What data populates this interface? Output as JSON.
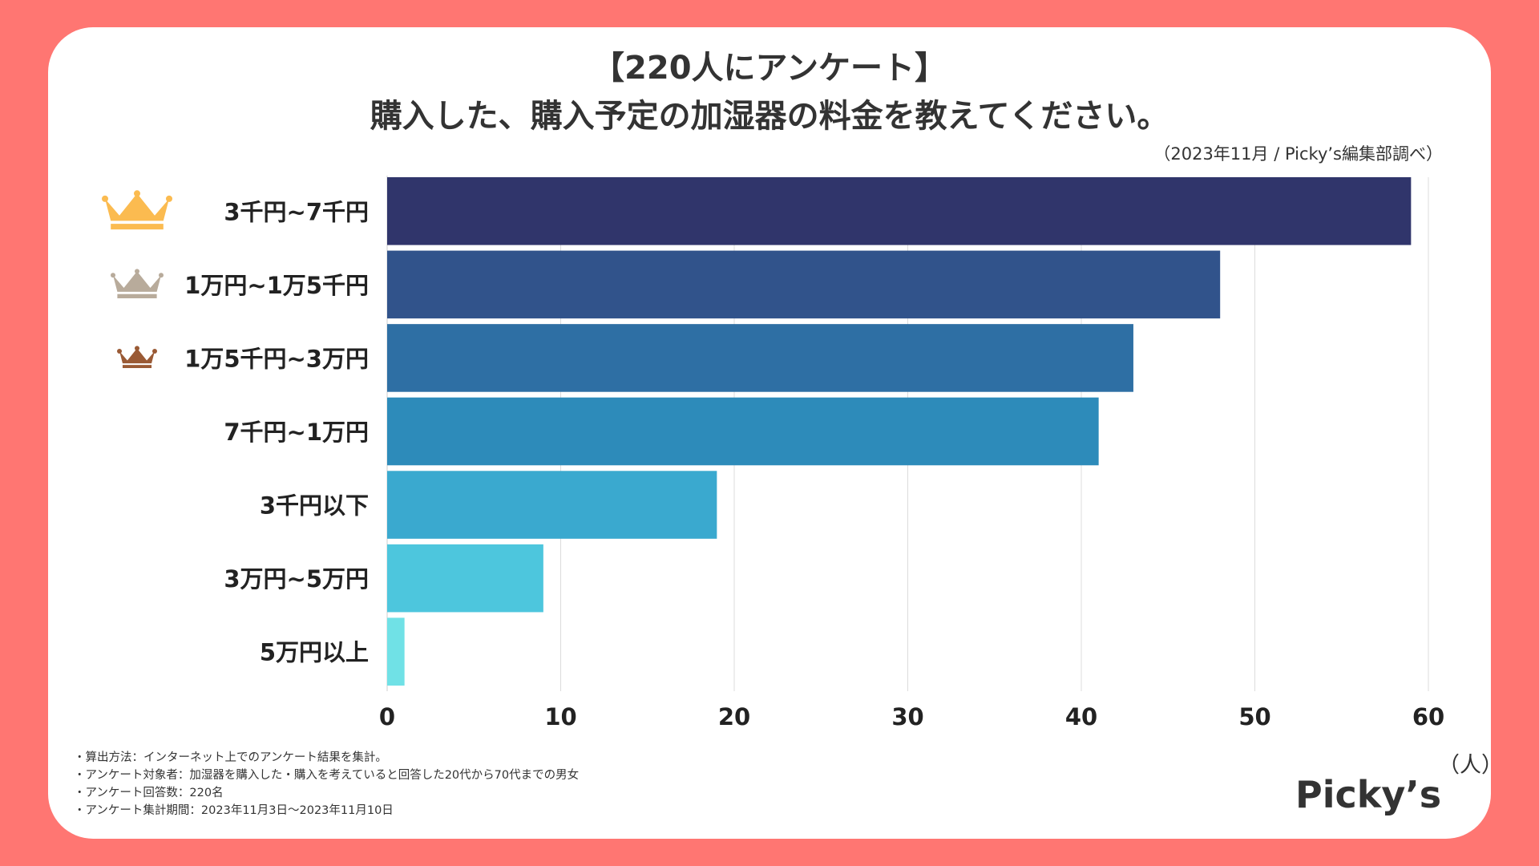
{
  "title_line1": "【220人にアンケート】",
  "title_line2": "購入した、購入予定の加湿器の料金を教えてください。",
  "source": "（2023年11月 / Picky’s編集部調べ）",
  "unit_label": "（人）",
  "logo_text": "Picky’s",
  "notes": [
    "・算出方法：インターネット上でのアンケート結果を集計。",
    "・アンケート対象者：加湿器を購入した・購入を考えていると回答した20代から70代までの男女",
    "・アンケート回答数：220名",
    "・アンケート集計期間：2023年11月3日〜2023年11月10日"
  ],
  "colors": {
    "background": "#ff7672",
    "gold_crown": "#fbbb50",
    "silver_crown": "#b8ab9b",
    "bronze_crown": "#9a5a35"
  },
  "chart_data": {
    "type": "bar",
    "orientation": "horizontal",
    "title": "購入した、購入予定の加湿器の料金を教えてください。",
    "xlabel": "（人）",
    "ylabel": "",
    "xlim": [
      0,
      60
    ],
    "xticks": [
      0,
      10,
      20,
      30,
      40,
      50,
      60
    ],
    "grid": true,
    "categories": [
      "3千円~7千円",
      "1万円~1万5千円",
      "1万5千円~3万円",
      "7千円~1万円",
      "3千円以下",
      "3万円~5万円",
      "5万円以上"
    ],
    "values": [
      59,
      48,
      43,
      41,
      19,
      9,
      1
    ],
    "bar_colors": [
      "#30356b",
      "#31538b",
      "#2e6fa4",
      "#2d8bba",
      "#3aa9cf",
      "#4dc6dd",
      "#70e1e6"
    ],
    "rank_icons": [
      "gold-crown",
      "silver-crown",
      "bronze-crown",
      "",
      "",
      "",
      ""
    ]
  }
}
